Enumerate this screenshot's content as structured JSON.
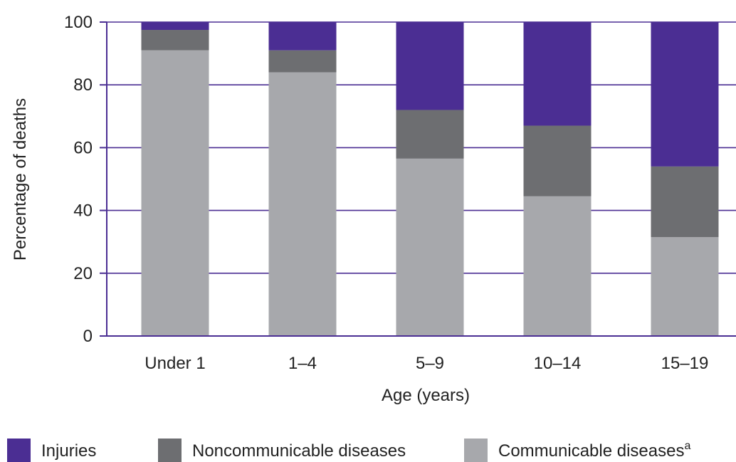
{
  "chart_data": {
    "type": "bar",
    "stacked": true,
    "categories": [
      "Under 1",
      "1–4",
      "5–9",
      "10–14",
      "15–19"
    ],
    "series": [
      {
        "name": "Communicable diseases",
        "superscript": "a",
        "color": "#a7a8ac",
        "values": [
          91,
          84,
          56.5,
          44.5,
          31.5
        ]
      },
      {
        "name": "Noncommunicable diseases",
        "color": "#6d6e71",
        "values": [
          6.5,
          7,
          15.5,
          22.5,
          22.5
        ]
      },
      {
        "name": "Injuries",
        "color": "#4b2e93",
        "values": [
          2.5,
          9,
          28,
          33,
          46
        ]
      }
    ],
    "yticks": [
      0,
      20,
      40,
      60,
      80,
      100
    ],
    "ylim": [
      0,
      100
    ],
    "xlabel": "Age (years)",
    "ylabel": "Percentage of deaths",
    "grid": true,
    "grid_color": "#4b2e93",
    "axis_color": "#4b2e93",
    "legend_position": "bottom"
  }
}
